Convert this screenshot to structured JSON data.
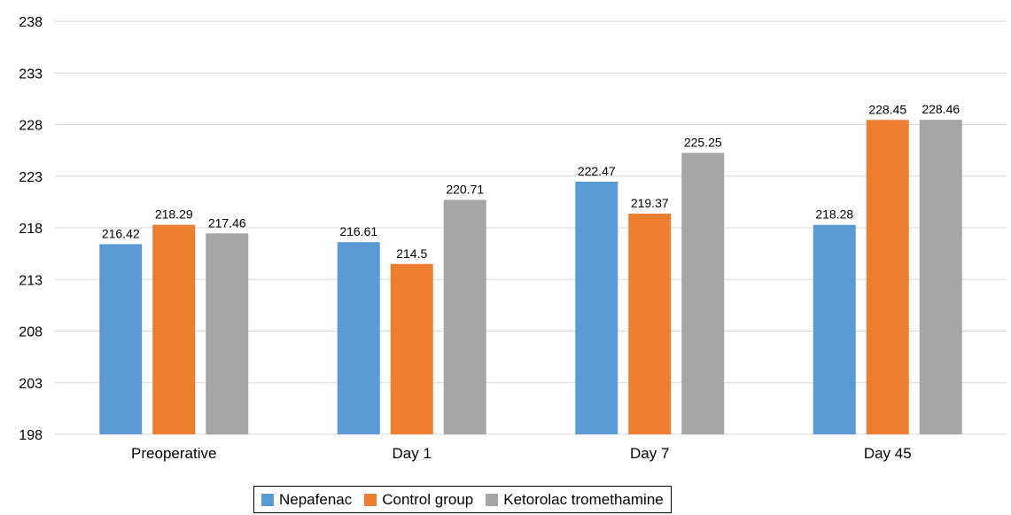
{
  "chart_data": {
    "type": "bar",
    "categories": [
      "Preoperative",
      "Day 1",
      "Day 7",
      "Day 45"
    ],
    "series": [
      {
        "name": "Nepafenac",
        "color": "#5b9bd5",
        "values": [
          216.42,
          216.61,
          222.47,
          218.28
        ],
        "labels": [
          "216.42",
          "216.61",
          "222.47",
          "218.28"
        ]
      },
      {
        "name": "Control group",
        "color": "#ed7d31",
        "values": [
          218.29,
          214.5,
          219.37,
          228.45
        ],
        "labels": [
          "218.29",
          "214.5",
          "219.37",
          "228.45"
        ]
      },
      {
        "name": "Ketorolac tromethamine",
        "color": "#a5a5a5",
        "values": [
          217.46,
          220.71,
          225.25,
          228.46
        ],
        "labels": [
          "217.46",
          "220.71",
          "225.25",
          "228.46"
        ]
      }
    ],
    "yticks": [
      "198",
      "203",
      "208",
      "213",
      "218",
      "223",
      "228",
      "233",
      "238"
    ],
    "ylim": [
      198,
      238
    ],
    "grid": true,
    "legend": "bottom"
  }
}
